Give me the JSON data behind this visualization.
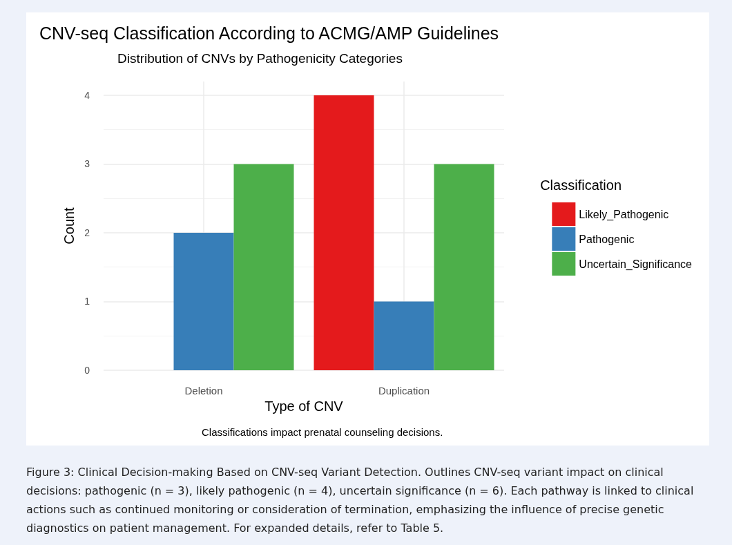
{
  "chart_data": {
    "type": "bar",
    "title": "CNV-seq Classification According to ACMG/AMP Guidelines",
    "subtitle": "Distribution of CNVs by Pathogenicity Categories",
    "xlabel": "Type of CNV",
    "ylabel": "Count",
    "legend_title": "Classification",
    "categories": [
      "Deletion",
      "Duplication"
    ],
    "series": [
      {
        "name": "Likely_Pathogenic",
        "color": "#e41a1c",
        "values": [
          null,
          4
        ]
      },
      {
        "name": "Pathogenic",
        "color": "#377eb8",
        "values": [
          2,
          1
        ]
      },
      {
        "name": "Uncertain_Significance",
        "color": "#4daf4a",
        "values": [
          3,
          3
        ]
      }
    ],
    "ylim": [
      0,
      4.2
    ],
    "yticks": [
      0,
      1,
      2,
      3,
      4
    ],
    "grid": true,
    "legend": "right",
    "annotations": [
      "Classifications impact prenatal counseling decisions.",
      "Figure 3: Clinical Decision-making Based on CNV-seq Variant Detection. Outlines CNV-seq variant impact on clinical decisions: pathogenic (n = 3), likely pathogenic (n = 4), uncertain significance (n = 6). Each pathway is linked to clinical actions such as continued monitoring or consideration of termination, emphasizing the influence of precise genetic diagnostics on patient management. For expanded details, refer to Table 5."
    ]
  }
}
